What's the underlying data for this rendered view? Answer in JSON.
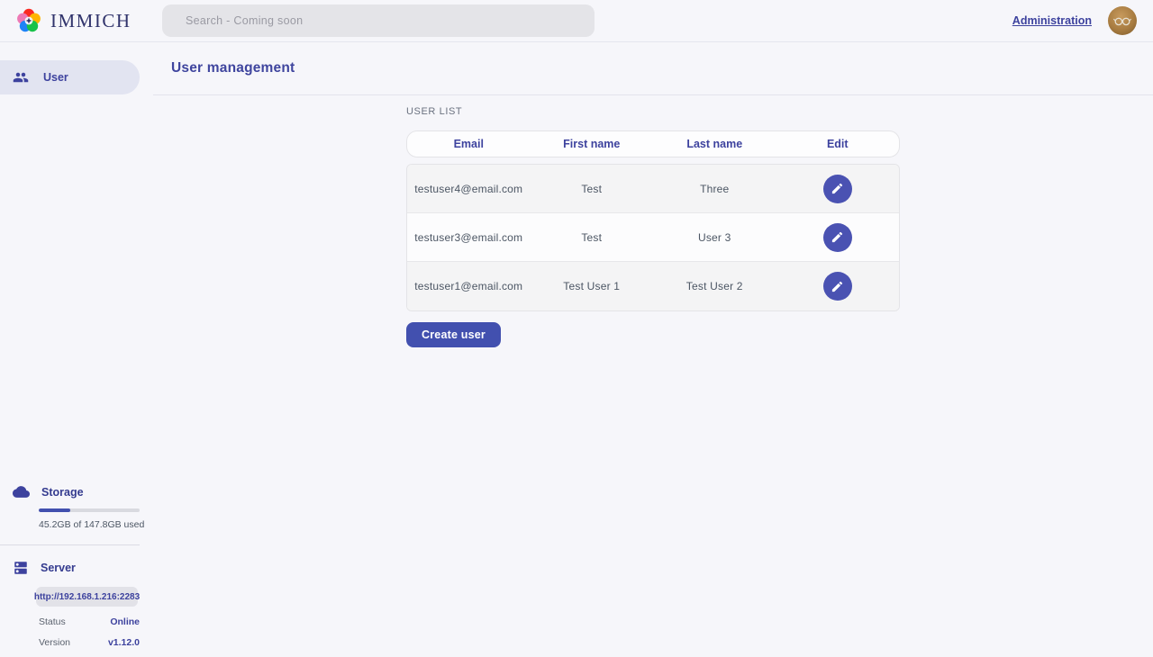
{
  "header": {
    "logo_text": "IMMICH",
    "search_placeholder": "Search - Coming soon",
    "admin_link_label": "Administration"
  },
  "sidebar": {
    "items": [
      {
        "label": "User",
        "icon": "users-icon",
        "active": true
      }
    ],
    "storage": {
      "title": "Storage",
      "icon": "cloud-icon",
      "percent_used": 31,
      "usage_text": "45.2GB of 147.8GB used"
    },
    "server": {
      "title": "Server",
      "icon": "server-icon",
      "url": "http://192.168.1.216:2283",
      "status_label": "Status",
      "status_value": "Online",
      "version_label": "Version",
      "version_value": "v1.12.0"
    }
  },
  "main": {
    "page_title": "User management",
    "section_label": "USER LIST",
    "table": {
      "columns": [
        "Email",
        "First name",
        "Last name",
        "Edit"
      ],
      "rows": [
        {
          "email": "testuser4@email.com",
          "first_name": "Test",
          "last_name": "Three"
        },
        {
          "email": "testuser3@email.com",
          "first_name": "Test",
          "last_name": "User 3"
        },
        {
          "email": "testuser1@email.com",
          "first_name": "Test User 1",
          "last_name": "Test User 2"
        }
      ]
    },
    "create_button_label": "Create user"
  },
  "colors": {
    "accent": "#4250af",
    "accent_dark_text": "#3d429e",
    "status_online": "#3d429e",
    "page_background": "#f6f6fa",
    "row_gray": "#f4f4f5",
    "logo_petals": [
      "#fa2921",
      "#ffb400",
      "#18c249",
      "#1e83f7",
      "#ed79b5"
    ]
  }
}
